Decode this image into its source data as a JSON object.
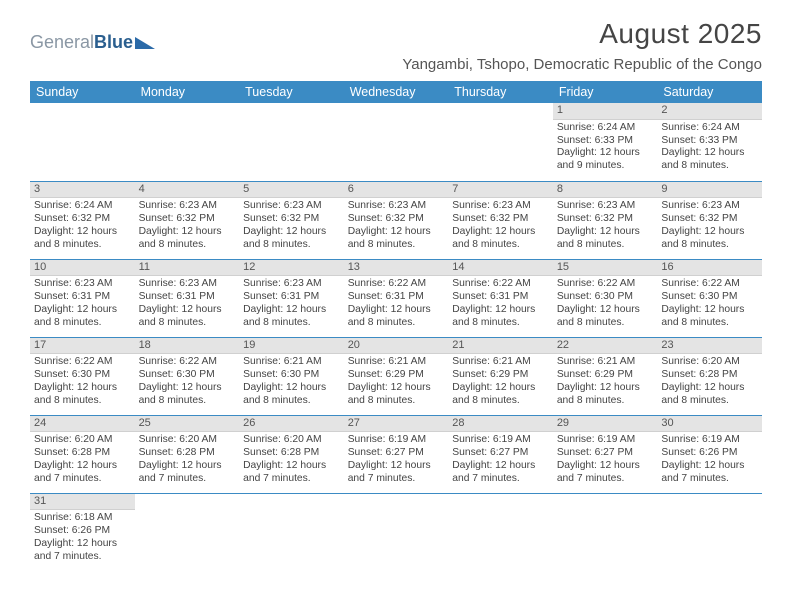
{
  "brand": {
    "part1": "General",
    "part2": "Blue"
  },
  "title": "August 2025",
  "location": "Yangambi, Tshopo, Democratic Republic of the Congo",
  "colors": {
    "header_bg": "#3b8bc4",
    "header_text": "#ffffff",
    "daynum_bg": "#e4e4e4",
    "row_divider": "#3b8bc4",
    "text": "#444444",
    "logo_light": "#8a97a4",
    "logo_dark": "#2b5f8f"
  },
  "font": {
    "family": "Arial",
    "body_size_pt": 7.8,
    "header_size_pt": 9.5,
    "title_size_pt": 21
  },
  "day_headers": [
    "Sunday",
    "Monday",
    "Tuesday",
    "Wednesday",
    "Thursday",
    "Friday",
    "Saturday"
  ],
  "weeks": [
    [
      {
        "n": "",
        "sr": "",
        "ss": "",
        "dl1": "",
        "dl2": "",
        "empty": true
      },
      {
        "n": "",
        "sr": "",
        "ss": "",
        "dl1": "",
        "dl2": "",
        "empty": true
      },
      {
        "n": "",
        "sr": "",
        "ss": "",
        "dl1": "",
        "dl2": "",
        "empty": true
      },
      {
        "n": "",
        "sr": "",
        "ss": "",
        "dl1": "",
        "dl2": "",
        "empty": true
      },
      {
        "n": "",
        "sr": "",
        "ss": "",
        "dl1": "",
        "dl2": "",
        "empty": true
      },
      {
        "n": "1",
        "sr": "Sunrise: 6:24 AM",
        "ss": "Sunset: 6:33 PM",
        "dl1": "Daylight: 12 hours",
        "dl2": "and 9 minutes."
      },
      {
        "n": "2",
        "sr": "Sunrise: 6:24 AM",
        "ss": "Sunset: 6:33 PM",
        "dl1": "Daylight: 12 hours",
        "dl2": "and 8 minutes."
      }
    ],
    [
      {
        "n": "3",
        "sr": "Sunrise: 6:24 AM",
        "ss": "Sunset: 6:32 PM",
        "dl1": "Daylight: 12 hours",
        "dl2": "and 8 minutes."
      },
      {
        "n": "4",
        "sr": "Sunrise: 6:23 AM",
        "ss": "Sunset: 6:32 PM",
        "dl1": "Daylight: 12 hours",
        "dl2": "and 8 minutes."
      },
      {
        "n": "5",
        "sr": "Sunrise: 6:23 AM",
        "ss": "Sunset: 6:32 PM",
        "dl1": "Daylight: 12 hours",
        "dl2": "and 8 minutes."
      },
      {
        "n": "6",
        "sr": "Sunrise: 6:23 AM",
        "ss": "Sunset: 6:32 PM",
        "dl1": "Daylight: 12 hours",
        "dl2": "and 8 minutes."
      },
      {
        "n": "7",
        "sr": "Sunrise: 6:23 AM",
        "ss": "Sunset: 6:32 PM",
        "dl1": "Daylight: 12 hours",
        "dl2": "and 8 minutes."
      },
      {
        "n": "8",
        "sr": "Sunrise: 6:23 AM",
        "ss": "Sunset: 6:32 PM",
        "dl1": "Daylight: 12 hours",
        "dl2": "and 8 minutes."
      },
      {
        "n": "9",
        "sr": "Sunrise: 6:23 AM",
        "ss": "Sunset: 6:32 PM",
        "dl1": "Daylight: 12 hours",
        "dl2": "and 8 minutes."
      }
    ],
    [
      {
        "n": "10",
        "sr": "Sunrise: 6:23 AM",
        "ss": "Sunset: 6:31 PM",
        "dl1": "Daylight: 12 hours",
        "dl2": "and 8 minutes."
      },
      {
        "n": "11",
        "sr": "Sunrise: 6:23 AM",
        "ss": "Sunset: 6:31 PM",
        "dl1": "Daylight: 12 hours",
        "dl2": "and 8 minutes."
      },
      {
        "n": "12",
        "sr": "Sunrise: 6:23 AM",
        "ss": "Sunset: 6:31 PM",
        "dl1": "Daylight: 12 hours",
        "dl2": "and 8 minutes."
      },
      {
        "n": "13",
        "sr": "Sunrise: 6:22 AM",
        "ss": "Sunset: 6:31 PM",
        "dl1": "Daylight: 12 hours",
        "dl2": "and 8 minutes."
      },
      {
        "n": "14",
        "sr": "Sunrise: 6:22 AM",
        "ss": "Sunset: 6:31 PM",
        "dl1": "Daylight: 12 hours",
        "dl2": "and 8 minutes."
      },
      {
        "n": "15",
        "sr": "Sunrise: 6:22 AM",
        "ss": "Sunset: 6:30 PM",
        "dl1": "Daylight: 12 hours",
        "dl2": "and 8 minutes."
      },
      {
        "n": "16",
        "sr": "Sunrise: 6:22 AM",
        "ss": "Sunset: 6:30 PM",
        "dl1": "Daylight: 12 hours",
        "dl2": "and 8 minutes."
      }
    ],
    [
      {
        "n": "17",
        "sr": "Sunrise: 6:22 AM",
        "ss": "Sunset: 6:30 PM",
        "dl1": "Daylight: 12 hours",
        "dl2": "and 8 minutes."
      },
      {
        "n": "18",
        "sr": "Sunrise: 6:22 AM",
        "ss": "Sunset: 6:30 PM",
        "dl1": "Daylight: 12 hours",
        "dl2": "and 8 minutes."
      },
      {
        "n": "19",
        "sr": "Sunrise: 6:21 AM",
        "ss": "Sunset: 6:30 PM",
        "dl1": "Daylight: 12 hours",
        "dl2": "and 8 minutes."
      },
      {
        "n": "20",
        "sr": "Sunrise: 6:21 AM",
        "ss": "Sunset: 6:29 PM",
        "dl1": "Daylight: 12 hours",
        "dl2": "and 8 minutes."
      },
      {
        "n": "21",
        "sr": "Sunrise: 6:21 AM",
        "ss": "Sunset: 6:29 PM",
        "dl1": "Daylight: 12 hours",
        "dl2": "and 8 minutes."
      },
      {
        "n": "22",
        "sr": "Sunrise: 6:21 AM",
        "ss": "Sunset: 6:29 PM",
        "dl1": "Daylight: 12 hours",
        "dl2": "and 8 minutes."
      },
      {
        "n": "23",
        "sr": "Sunrise: 6:20 AM",
        "ss": "Sunset: 6:28 PM",
        "dl1": "Daylight: 12 hours",
        "dl2": "and 8 minutes."
      }
    ],
    [
      {
        "n": "24",
        "sr": "Sunrise: 6:20 AM",
        "ss": "Sunset: 6:28 PM",
        "dl1": "Daylight: 12 hours",
        "dl2": "and 7 minutes."
      },
      {
        "n": "25",
        "sr": "Sunrise: 6:20 AM",
        "ss": "Sunset: 6:28 PM",
        "dl1": "Daylight: 12 hours",
        "dl2": "and 7 minutes."
      },
      {
        "n": "26",
        "sr": "Sunrise: 6:20 AM",
        "ss": "Sunset: 6:28 PM",
        "dl1": "Daylight: 12 hours",
        "dl2": "and 7 minutes."
      },
      {
        "n": "27",
        "sr": "Sunrise: 6:19 AM",
        "ss": "Sunset: 6:27 PM",
        "dl1": "Daylight: 12 hours",
        "dl2": "and 7 minutes."
      },
      {
        "n": "28",
        "sr": "Sunrise: 6:19 AM",
        "ss": "Sunset: 6:27 PM",
        "dl1": "Daylight: 12 hours",
        "dl2": "and 7 minutes."
      },
      {
        "n": "29",
        "sr": "Sunrise: 6:19 AM",
        "ss": "Sunset: 6:27 PM",
        "dl1": "Daylight: 12 hours",
        "dl2": "and 7 minutes."
      },
      {
        "n": "30",
        "sr": "Sunrise: 6:19 AM",
        "ss": "Sunset: 6:26 PM",
        "dl1": "Daylight: 12 hours",
        "dl2": "and 7 minutes."
      }
    ],
    [
      {
        "n": "31",
        "sr": "Sunrise: 6:18 AM",
        "ss": "Sunset: 6:26 PM",
        "dl1": "Daylight: 12 hours",
        "dl2": "and 7 minutes."
      },
      {
        "n": "",
        "sr": "",
        "ss": "",
        "dl1": "",
        "dl2": "",
        "empty": true
      },
      {
        "n": "",
        "sr": "",
        "ss": "",
        "dl1": "",
        "dl2": "",
        "empty": true
      },
      {
        "n": "",
        "sr": "",
        "ss": "",
        "dl1": "",
        "dl2": "",
        "empty": true
      },
      {
        "n": "",
        "sr": "",
        "ss": "",
        "dl1": "",
        "dl2": "",
        "empty": true
      },
      {
        "n": "",
        "sr": "",
        "ss": "",
        "dl1": "",
        "dl2": "",
        "empty": true
      },
      {
        "n": "",
        "sr": "",
        "ss": "",
        "dl1": "",
        "dl2": "",
        "empty": true
      }
    ]
  ]
}
